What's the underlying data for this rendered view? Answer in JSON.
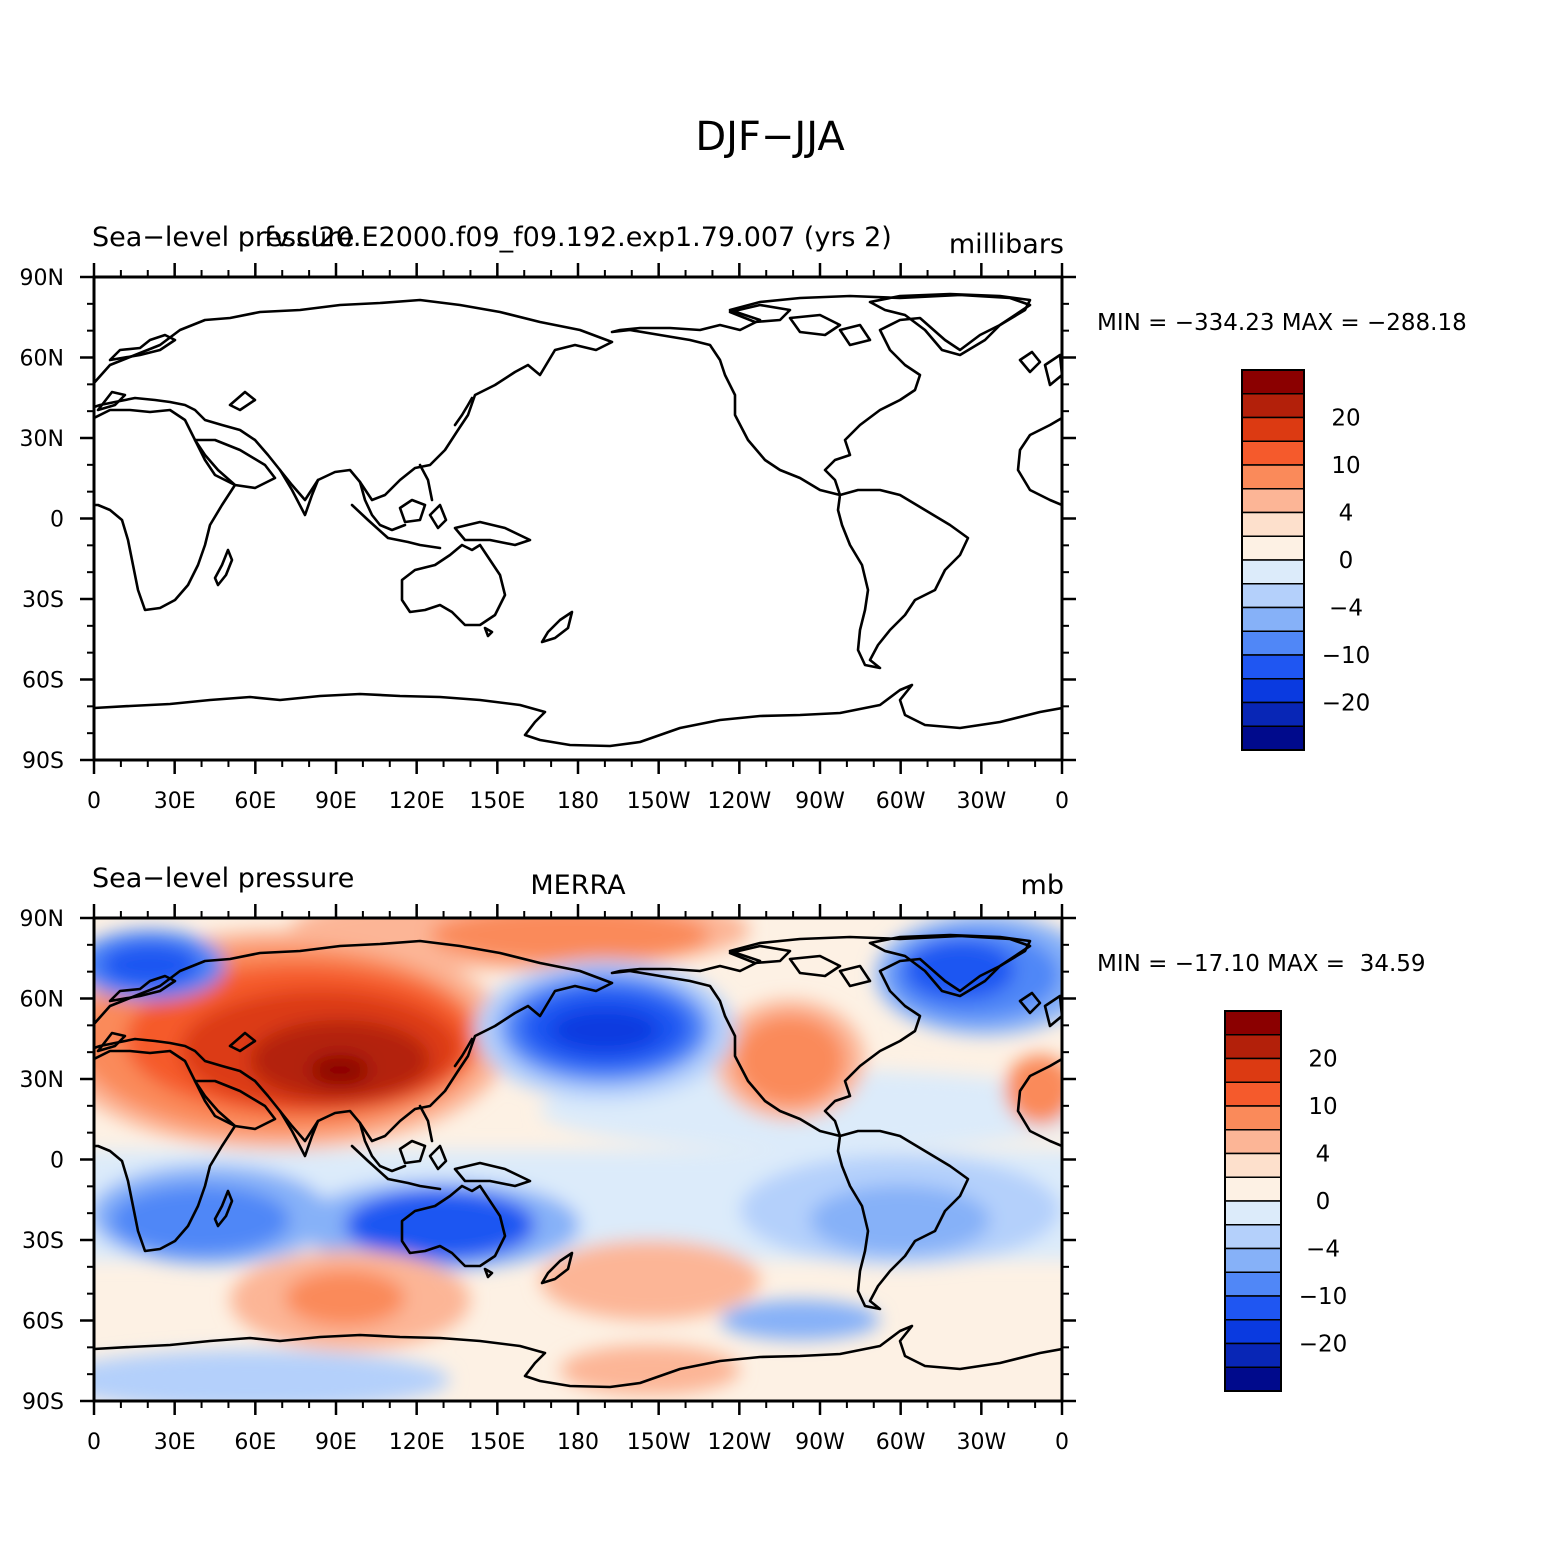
{
  "figure": {
    "title": "DJF−JJA"
  },
  "panels": [
    {
      "left_title": "Sea−level pressure",
      "center_title": "fv.cl20.E2000.f09_f09.192.exp1.79.007 (yrs 2)",
      "right_title": "millibars",
      "stats": "MIN = −334.23 MAX = −288.18",
      "field": "blank"
    },
    {
      "left_title": "Sea−level pressure",
      "center_title": "MERRA",
      "right_title": "mb",
      "stats": "MIN = −17.10 MAX =  34.59",
      "field": "filled"
    }
  ],
  "axes": {
    "lat_ticks": [
      "90N",
      "60N",
      "30N",
      "0",
      "30S",
      "60S",
      "90S"
    ],
    "lon_ticks": [
      "0",
      "30E",
      "60E",
      "90E",
      "120E",
      "150E",
      "180",
      "150W",
      "120W",
      "90W",
      "60W",
      "30W",
      "0"
    ]
  },
  "colorbar": {
    "labels": [
      "20",
      "10",
      "4",
      "0",
      "−4",
      "−10",
      "−20"
    ],
    "colors": [
      "#8b0000",
      "#b3200a",
      "#dc3a12",
      "#f55a2c",
      "#fa8a5a",
      "#fcb596",
      "#fde0cc",
      "#fdf1e4",
      "#dcebfa",
      "#b4d0fb",
      "#86b1f8",
      "#5087f7",
      "#1f56f2",
      "#0a3ae0",
      "#0826b6",
      "#000a8c"
    ]
  },
  "legend": {}
}
